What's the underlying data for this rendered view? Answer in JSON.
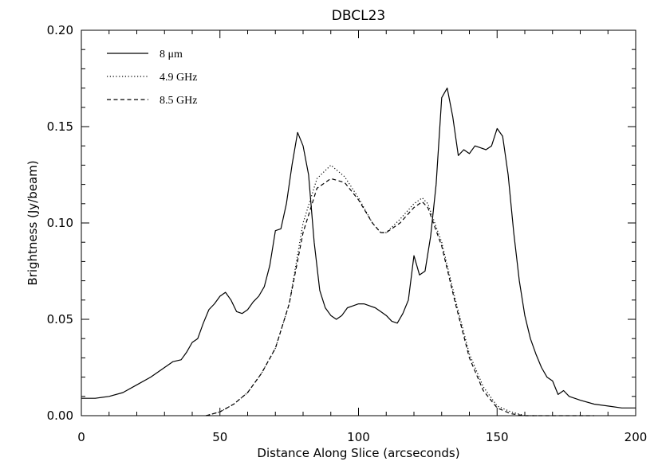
{
  "chart_data": {
    "type": "line",
    "title": "DBCL23",
    "xlabel": "Distance Along Slice (arcseconds)",
    "ylabel": "Brightness (Jy/beam)",
    "xlim": [
      0,
      200
    ],
    "ylim": [
      0,
      0.2
    ],
    "x_ticks": [
      0,
      50,
      100,
      150,
      200
    ],
    "x_tick_labels": [
      "0",
      "50",
      "100",
      "150",
      "200"
    ],
    "y_ticks": [
      0,
      0.05,
      0.1,
      0.15,
      0.2
    ],
    "y_tick_labels": [
      "0.00",
      "0.05",
      "0.10",
      "0.15",
      "0.20"
    ],
    "grid": false,
    "legend_position": "top-left",
    "series": [
      {
        "name": "8 μm",
        "dash": "solid",
        "x": [
          0,
          5,
          10,
          15,
          20,
          25,
          30,
          33,
          36,
          38,
          40,
          42,
          44,
          46,
          48,
          50,
          52,
          54,
          56,
          58,
          60,
          62,
          64,
          66,
          68,
          70,
          72,
          74,
          76,
          78,
          80,
          82,
          84,
          86,
          88,
          90,
          92,
          94,
          96,
          98,
          100,
          102,
          104,
          106,
          108,
          110,
          112,
          114,
          116,
          118,
          120,
          122,
          124,
          126,
          128,
          130,
          132,
          134,
          136,
          138,
          140,
          142,
          144,
          146,
          148,
          150,
          152,
          154,
          156,
          158,
          160,
          162,
          164,
          166,
          168,
          170,
          172,
          174,
          176,
          180,
          185,
          190,
          195,
          200
        ],
        "y": [
          0.009,
          0.009,
          0.01,
          0.012,
          0.016,
          0.02,
          0.025,
          0.028,
          0.029,
          0.033,
          0.038,
          0.04,
          0.048,
          0.055,
          0.058,
          0.062,
          0.064,
          0.06,
          0.054,
          0.053,
          0.055,
          0.059,
          0.062,
          0.067,
          0.078,
          0.096,
          0.097,
          0.11,
          0.13,
          0.147,
          0.14,
          0.125,
          0.09,
          0.065,
          0.056,
          0.052,
          0.05,
          0.052,
          0.056,
          0.057,
          0.058,
          0.058,
          0.057,
          0.056,
          0.054,
          0.052,
          0.049,
          0.048,
          0.053,
          0.06,
          0.083,
          0.073,
          0.075,
          0.093,
          0.12,
          0.165,
          0.17,
          0.155,
          0.135,
          0.138,
          0.136,
          0.14,
          0.139,
          0.138,
          0.14,
          0.149,
          0.145,
          0.125,
          0.095,
          0.07,
          0.052,
          0.04,
          0.032,
          0.025,
          0.02,
          0.018,
          0.011,
          0.013,
          0.01,
          0.008,
          0.006,
          0.005,
          0.004,
          0.004
        ]
      },
      {
        "name": "4.9 GHz",
        "dash": "dotted",
        "x": [
          45,
          50,
          55,
          60,
          65,
          70,
          75,
          80,
          85,
          90,
          95,
          100,
          105,
          108,
          110,
          115,
          120,
          123,
          125,
          130,
          135,
          140,
          145,
          150,
          155,
          160,
          165
        ],
        "y": [
          0.0,
          0.002,
          0.006,
          0.012,
          0.022,
          0.035,
          0.058,
          0.1,
          0.123,
          0.13,
          0.124,
          0.113,
          0.1,
          0.095,
          0.095,
          0.102,
          0.11,
          0.113,
          0.11,
          0.09,
          0.06,
          0.032,
          0.015,
          0.005,
          0.002,
          0.0,
          0.0
        ]
      },
      {
        "name": "8.5 GHz",
        "dash": "dashed",
        "x": [
          45,
          50,
          55,
          60,
          65,
          70,
          75,
          80,
          85,
          90,
          95,
          100,
          105,
          108,
          110,
          115,
          120,
          123,
          125,
          130,
          135,
          140,
          145,
          150,
          155,
          160,
          165,
          170,
          175,
          180,
          185
        ],
        "y": [
          0.0,
          0.002,
          0.006,
          0.012,
          0.022,
          0.035,
          0.058,
          0.095,
          0.118,
          0.123,
          0.121,
          0.112,
          0.1,
          0.095,
          0.095,
          0.1,
          0.108,
          0.111,
          0.108,
          0.088,
          0.058,
          0.03,
          0.013,
          0.004,
          0.001,
          0.0,
          0.0,
          0.0,
          0.0,
          0.0,
          0.0
        ]
      }
    ]
  }
}
